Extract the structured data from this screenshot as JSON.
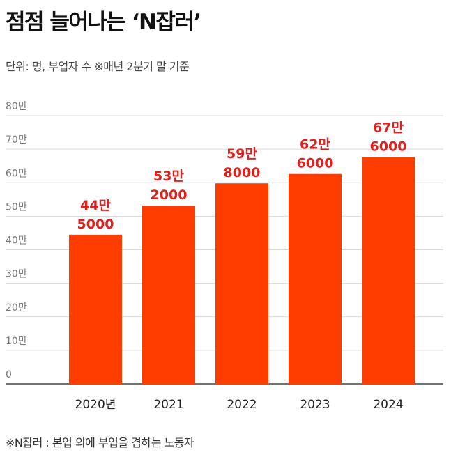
{
  "header": {
    "title": "점점 늘어나는 ‘N잡러’",
    "subtitle": "단위: 명, 부업자 수   ※매년 2분기 말 기준"
  },
  "footer": {
    "note": "※N잡러 : 본업 외에 부업을 겸하는 노동자"
  },
  "colors": {
    "bar": "#ff3d00",
    "value_label": "#e0201c",
    "gridline": "#d9d9d9",
    "baseline": "#444444"
  },
  "chart_data": {
    "type": "bar",
    "title": "점점 늘어나는 ‘N잡러’",
    "categories": [
      "2020년",
      "2021",
      "2022",
      "2023",
      "2024"
    ],
    "values": [
      445000,
      532000,
      598000,
      626000,
      676000
    ],
    "value_labels": [
      [
        "44만",
        "5000"
      ],
      [
        "53만",
        "2000"
      ],
      [
        "59만",
        "8000"
      ],
      [
        "62만",
        "6000"
      ],
      [
        "67만",
        "6000"
      ]
    ],
    "yticks": [
      0,
      100000,
      200000,
      300000,
      400000,
      500000,
      600000,
      700000,
      800000
    ],
    "ytick_labels": [
      "0",
      "10만",
      "20만",
      "30만",
      "40만",
      "50만",
      "60만",
      "70만",
      "80만"
    ],
    "ylim": [
      0,
      800000
    ],
    "grid": true
  }
}
